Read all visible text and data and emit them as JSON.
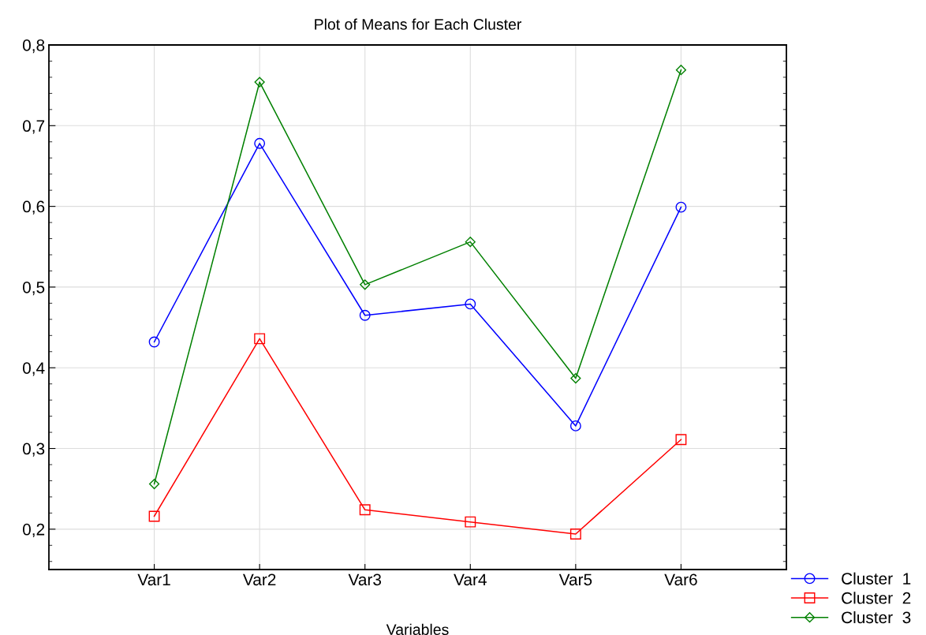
{
  "chart_data": {
    "type": "line",
    "title": "Plot of Means for Each Cluster",
    "xlabel": "Variables",
    "categories": [
      "Var1",
      "Var2",
      "Var3",
      "Var4",
      "Var5",
      "Var6"
    ],
    "series": [
      {
        "name": "Cluster  1",
        "color": "#0000ff",
        "marker": "circle",
        "values": [
          0.432,
          0.678,
          0.465,
          0.479,
          0.328,
          0.599
        ]
      },
      {
        "name": "Cluster  2",
        "color": "#ff0000",
        "marker": "square",
        "values": [
          0.216,
          0.436,
          0.224,
          0.209,
          0.194,
          0.311
        ]
      },
      {
        "name": "Cluster  3",
        "color": "#008000",
        "marker": "diamond",
        "values": [
          0.256,
          0.754,
          0.503,
          0.556,
          0.387,
          0.769
        ]
      }
    ],
    "ylim": [
      0.15,
      0.8
    ],
    "yticks": [
      {
        "value": 0.2,
        "label": "0,2"
      },
      {
        "value": 0.3,
        "label": "0,3"
      },
      {
        "value": 0.4,
        "label": "0,4"
      },
      {
        "value": 0.5,
        "label": "0,5"
      },
      {
        "value": 0.6,
        "label": "0,6"
      },
      {
        "value": 0.7,
        "label": "0,7"
      },
      {
        "value": 0.8,
        "label": "0,8"
      }
    ],
    "grid": true,
    "legend": "bottom right",
    "line_style": "solid"
  }
}
